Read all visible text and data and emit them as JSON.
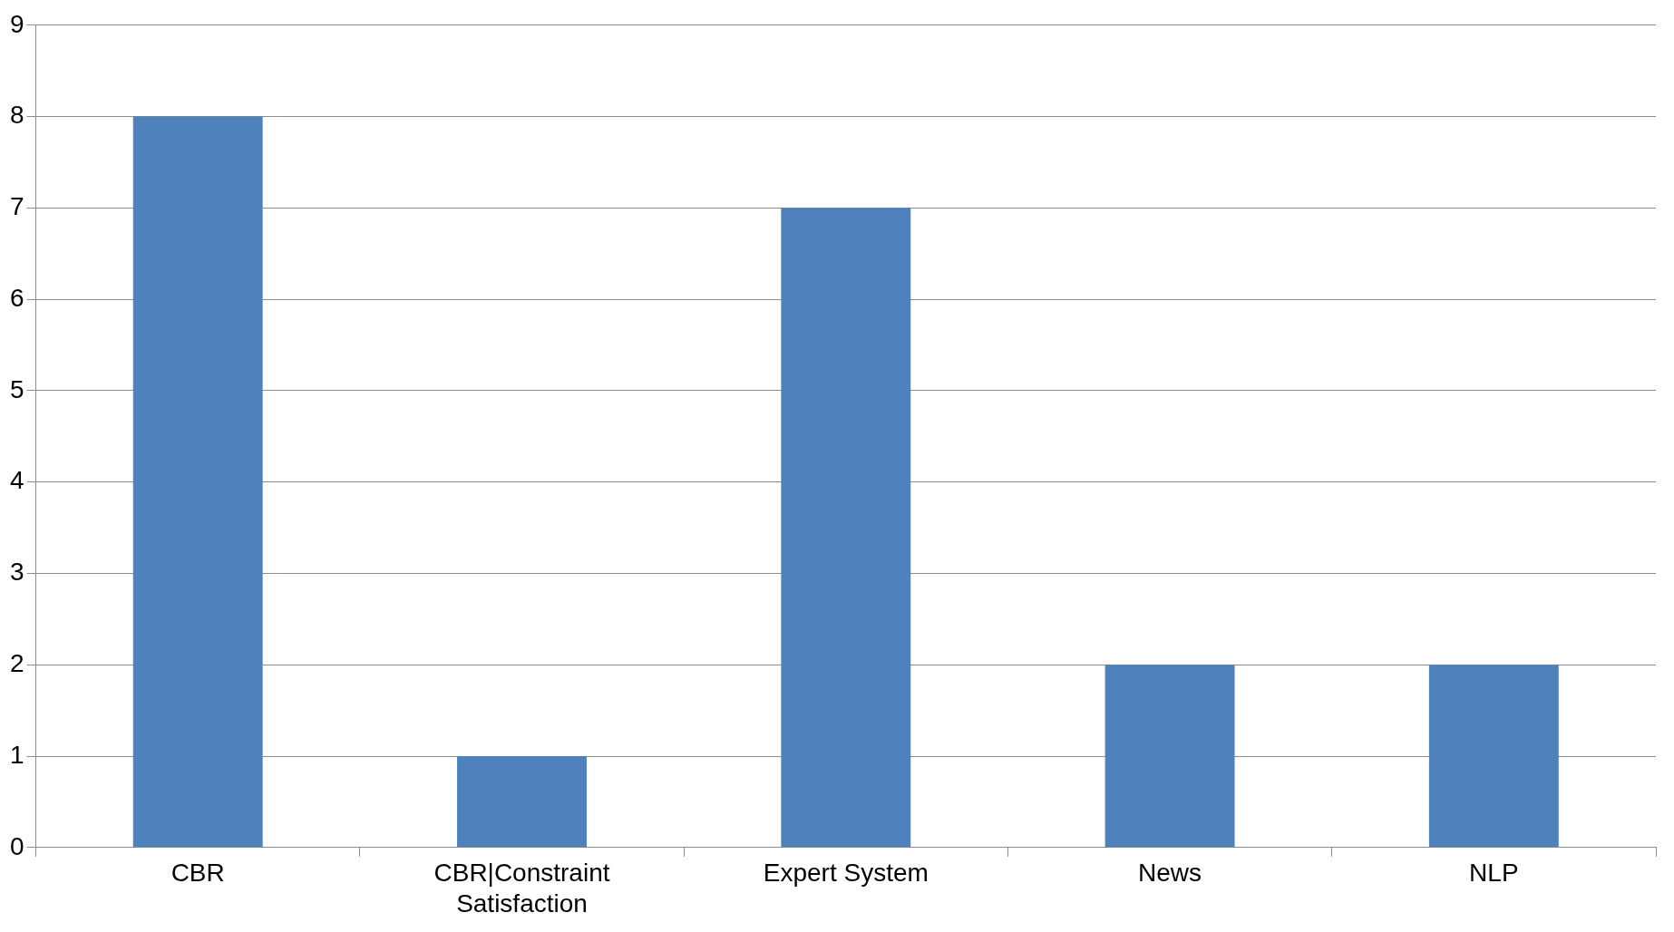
{
  "chart_data": {
    "type": "bar",
    "categories": [
      "CBR",
      "CBR|Constraint Satisfaction",
      "Expert System",
      "News",
      "NLP"
    ],
    "values": [
      8,
      1,
      7,
      2,
      2
    ],
    "color": "#4f81bd",
    "ylim": [
      0,
      9
    ],
    "yticks": [
      0,
      1,
      2,
      3,
      4,
      5,
      6,
      7,
      8,
      9
    ],
    "grid": "y",
    "legend": false
  }
}
